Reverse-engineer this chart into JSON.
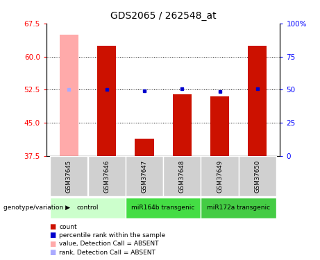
{
  "title": "GDS2065 / 262548_at",
  "samples": [
    "GSM37645",
    "GSM37646",
    "GSM37647",
    "GSM37648",
    "GSM37649",
    "GSM37650"
  ],
  "ylim_left": [
    37.5,
    67.5
  ],
  "ylim_right": [
    0,
    100
  ],
  "yticks_left": [
    37.5,
    45.0,
    52.5,
    60.0,
    67.5
  ],
  "yticks_right": [
    0,
    25,
    50,
    75,
    100
  ],
  "ytick_labels_right": [
    "0",
    "25",
    "50",
    "75",
    "100%"
  ],
  "bar_bottom": 37.5,
  "bar_values": [
    65.0,
    62.5,
    41.5,
    51.5,
    51.0,
    62.5
  ],
  "rank_values_pct": [
    50.0,
    50.0,
    49.0,
    50.5,
    48.5,
    50.5
  ],
  "absent": [
    true,
    false,
    false,
    false,
    false,
    false
  ],
  "bar_color_present": "#cc1100",
  "bar_color_absent": "#ffaaaa",
  "rank_color_present": "#0000cc",
  "rank_color_absent": "#aaaaff",
  "grid_yticks": [
    45.0,
    52.5,
    60.0
  ],
  "bar_width": 0.5,
  "groups": [
    {
      "cols": [
        0,
        1
      ],
      "label": "control",
      "color": "#ccffcc"
    },
    {
      "cols": [
        2,
        3
      ],
      "label": "miR164b transgenic",
      "color": "#44dd44"
    },
    {
      "cols": [
        4,
        5
      ],
      "label": "miR172a transgenic",
      "color": "#44cc44"
    }
  ],
  "sample_cell_color": "#d0d0d0",
  "legend_items": [
    {
      "label": "count",
      "color": "#cc1100"
    },
    {
      "label": "percentile rank within the sample",
      "color": "#0000cc"
    },
    {
      "label": "value, Detection Call = ABSENT",
      "color": "#ffaaaa"
    },
    {
      "label": "rank, Detection Call = ABSENT",
      "color": "#aaaaff"
    }
  ]
}
